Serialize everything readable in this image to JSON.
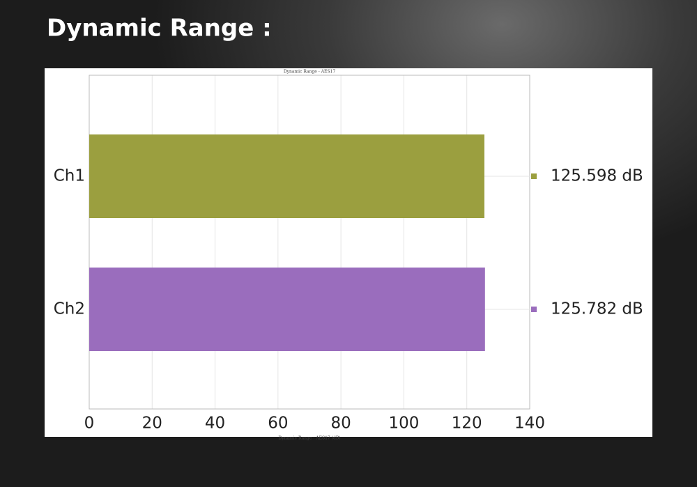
{
  "heading": "Dynamic Range :",
  "chart_data": {
    "type": "hbar",
    "title": "Dynamic Range - AES17",
    "x_label": "Dynamic Range - AES17 (dB)",
    "categories": [
      "Ch1",
      "Ch2"
    ],
    "values": [
      125.598,
      125.782
    ],
    "value_labels": [
      "125.598 dB",
      "125.782 dB"
    ],
    "colors": [
      "#9b9f3f",
      "#9a6dbd"
    ],
    "xlim": [
      0,
      140
    ],
    "xticks": [
      0,
      20,
      40,
      60,
      80,
      100,
      120,
      140
    ],
    "grid": true
  }
}
